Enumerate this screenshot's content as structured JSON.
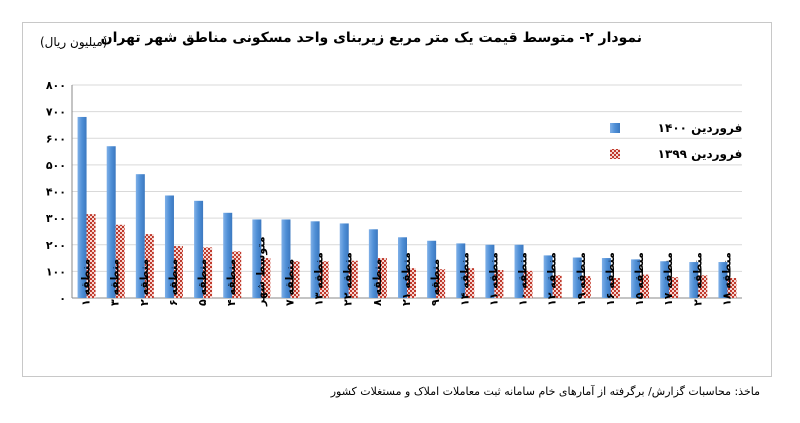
{
  "title": "نمودار ۲- متوسط قیمت یک متر مربع زیربنای واحد مسکونی مناطق شهر تهران",
  "unit": "(میلیون ریال)",
  "source": "ماخذ: محاسبات گزارش/ برگرفته از آمارهای خام سامانه ثبت معاملات املاک و مستغلات کشور",
  "colors": {
    "series1": "#4f8fd6",
    "series2": "#c0392b"
  },
  "chart_data": {
    "type": "bar",
    "ylim": [
      0,
      800
    ],
    "yticks": [
      0,
      100,
      200,
      300,
      400,
      500,
      600,
      700,
      800
    ],
    "ytick_labels": [
      "۰",
      "۱۰۰",
      "۲۰۰",
      "۳۰۰",
      "۴۰۰",
      "۵۰۰",
      "۶۰۰",
      "۷۰۰",
      "۸۰۰"
    ],
    "grid": "horizontal",
    "legend_position": "top-right",
    "categories": [
      "منطقه ۱",
      "منطقه ۳",
      "منطقه ۲",
      "منطقه ۶",
      "منطقه ۵",
      "منطقه ۴",
      "متوسط شهر",
      "منطقه ۷",
      "منطقه ۱۳",
      "منطقه ۲۲",
      "منطقه ۸",
      "منطقه ۲۱",
      "منطقه ۹",
      "منطقه ۱۴",
      "منطقه ۱۱",
      "منطقه ۱۰",
      "منطقه ۱۲",
      "منطقه ۱۹",
      "منطقه ۱۶",
      "منطقه ۱۵",
      "منطقه ۱۷",
      "منطقه ۲۰",
      "منطقه ۱۸"
    ],
    "series": [
      {
        "name": "فروردین ۱۴۰۰",
        "values": [
          680,
          570,
          465,
          385,
          365,
          320,
          295,
          295,
          288,
          280,
          258,
          228,
          215,
          205,
          200,
          200,
          160,
          152,
          150,
          145,
          138,
          135,
          135
        ]
      },
      {
        "name": "فروردین ۱۳۹۹",
        "values": [
          315,
          275,
          240,
          195,
          190,
          175,
          150,
          138,
          138,
          140,
          150,
          112,
          108,
          112,
          105,
          102,
          85,
          82,
          75,
          88,
          78,
          85,
          75
        ]
      }
    ]
  }
}
